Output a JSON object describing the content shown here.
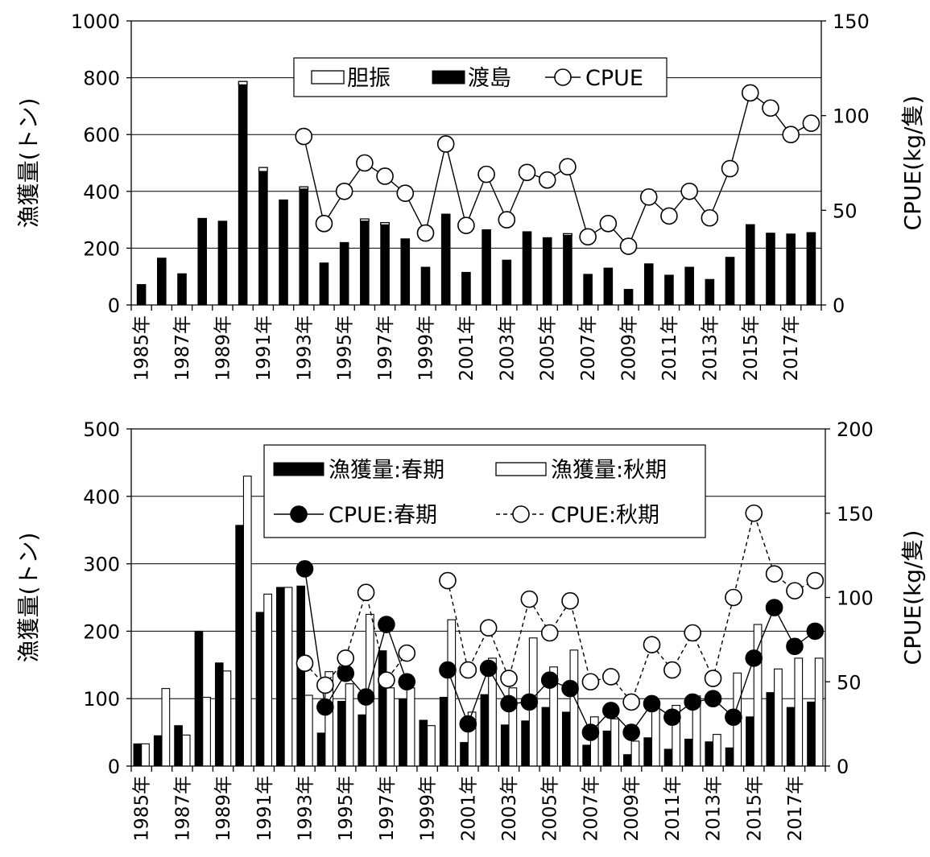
{
  "chart_data": [
    {
      "type": "bar",
      "categories": [
        1985,
        1986,
        1987,
        1988,
        1989,
        1990,
        1991,
        1992,
        1993,
        1994,
        1995,
        1996,
        1997,
        1998,
        1999,
        2000,
        2001,
        2002,
        2003,
        2004,
        2005,
        2006,
        2007,
        2008,
        2009,
        2010,
        2011,
        2012,
        2013,
        2014,
        2015,
        2016,
        2017,
        2018
      ],
      "x_tick_labels": [
        "1985年",
        "1987年",
        "1989年",
        "1991年",
        "1993年",
        "1995年",
        "1997年",
        "1999年",
        "2001年",
        "2003年",
        "2005年",
        "2007年",
        "2009年",
        "2011年",
        "2013年",
        "2015年",
        "2017年"
      ],
      "ylabel": "漁獲量(トン)",
      "y2label": "CPUE(kg/隻)",
      "ylim": [
        0,
        1000
      ],
      "y2lim": [
        0,
        150
      ],
      "yticks": [
        0,
        200,
        400,
        600,
        800,
        1000
      ],
      "y2ticks": [
        0,
        50,
        100,
        150
      ],
      "grid": true,
      "legend_position": "top-center",
      "series": [
        {
          "name": "胆振",
          "kind": "stacked-bar",
          "fill": "#ffffff",
          "values": [
            0,
            0,
            0,
            0,
            0,
            12,
            14,
            0,
            8,
            0,
            0,
            8,
            8,
            0,
            0,
            0,
            0,
            0,
            0,
            0,
            0,
            6,
            0,
            0,
            0,
            0,
            0,
            0,
            0,
            0,
            0,
            0,
            0,
            0
          ]
        },
        {
          "name": "渡島",
          "kind": "stacked-bar",
          "fill": "#000000",
          "values": [
            72,
            165,
            110,
            305,
            295,
            775,
            470,
            370,
            408,
            148,
            220,
            295,
            282,
            233,
            133,
            320,
            115,
            265,
            158,
            258,
            237,
            245,
            108,
            130,
            55,
            145,
            105,
            133,
            90,
            168,
            283,
            253,
            250,
            255
          ]
        },
        {
          "name": "CPUE",
          "kind": "line",
          "axis": "right",
          "marker": "open-circle",
          "values": [
            null,
            null,
            null,
            null,
            null,
            null,
            null,
            null,
            89,
            43,
            60,
            75,
            68,
            59,
            38,
            85,
            42,
            69,
            45,
            70,
            66,
            73,
            36,
            43,
            31,
            57,
            47,
            60,
            46,
            72,
            112,
            104,
            90,
            96
          ]
        }
      ]
    },
    {
      "type": "bar",
      "categories": [
        1985,
        1986,
        1987,
        1988,
        1989,
        1990,
        1991,
        1992,
        1993,
        1994,
        1995,
        1996,
        1997,
        1998,
        1999,
        2000,
        2001,
        2002,
        2003,
        2004,
        2005,
        2006,
        2007,
        2008,
        2009,
        2010,
        2011,
        2012,
        2013,
        2014,
        2015,
        2016,
        2017,
        2018
      ],
      "x_tick_labels": [
        "1985年",
        "1987年",
        "1989年",
        "1991年",
        "1993年",
        "1995年",
        "1997年",
        "1999年",
        "2001年",
        "2003年",
        "2005年",
        "2007年",
        "2009年",
        "2011年",
        "2013年",
        "2015年",
        "2017年"
      ],
      "ylabel": "漁獲量(トン)",
      "y2label": "CPUE(kg/隻)",
      "ylim": [
        0,
        500
      ],
      "y2lim": [
        0,
        200
      ],
      "yticks": [
        0,
        100,
        200,
        300,
        400,
        500
      ],
      "y2ticks": [
        0,
        50,
        100,
        150,
        200
      ],
      "grid": true,
      "legend_position": "top-center",
      "series": [
        {
          "name": "漁獲量:春期",
          "kind": "bar",
          "fill": "#000000",
          "values": [
            33,
            45,
            60,
            200,
            153,
            357,
            228,
            265,
            267,
            49,
            96,
            76,
            171,
            99,
            68,
            102,
            35,
            106,
            61,
            67,
            87,
            80,
            31,
            52,
            17,
            42,
            25,
            40,
            36,
            27,
            73,
            109,
            87,
            95
          ]
        },
        {
          "name": "漁獲量:秋期",
          "kind": "bar",
          "fill": "#ffffff",
          "values": [
            33,
            115,
            46,
            102,
            141,
            430,
            255,
            265,
            105,
            140,
            122,
            225,
            116,
            116,
            60,
            217,
            80,
            160,
            116,
            190,
            147,
            172,
            73,
            70,
            37,
            90,
            90,
            104,
            47,
            138,
            210,
            144,
            160,
            160
          ]
        },
        {
          "name": "CPUE:春期",
          "kind": "line",
          "axis": "right",
          "marker": "filled-circle",
          "dash": "solid",
          "values": [
            null,
            null,
            null,
            null,
            null,
            null,
            null,
            null,
            117,
            35,
            55,
            41,
            84,
            50,
            null,
            57,
            25,
            58,
            37,
            38,
            51,
            46,
            20,
            33,
            20,
            37,
            29,
            38,
            40,
            29,
            64,
            94,
            71,
            80
          ]
        },
        {
          "name": "CPUE:秋期",
          "kind": "line",
          "axis": "right",
          "marker": "open-circle",
          "dash": "dashed",
          "values": [
            null,
            null,
            null,
            null,
            null,
            null,
            null,
            null,
            61,
            48,
            64,
            103,
            51,
            67,
            null,
            110,
            57,
            82,
            52,
            99,
            79,
            98,
            50,
            53,
            38,
            72,
            57,
            79,
            52,
            100,
            150,
            114,
            104,
            110
          ]
        }
      ]
    }
  ]
}
